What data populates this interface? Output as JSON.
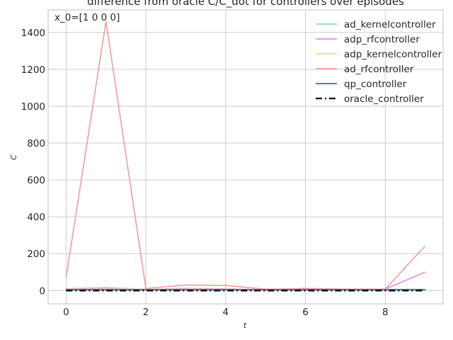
{
  "chart_data": {
    "type": "line",
    "title": "difference from oracle C/C_dot for controllers over episodes",
    "xlabel": "t",
    "ylabel": "C",
    "annotation": "x_0=[1 0 0 0]",
    "xlim": [
      -0.45,
      9.45
    ],
    "ylim": [
      -72,
      1522
    ],
    "xticks": [
      0,
      2,
      4,
      6,
      8
    ],
    "yticks": [
      0,
      200,
      400,
      600,
      800,
      1000,
      1200,
      1400
    ],
    "grid": true,
    "legend_position": "top-right",
    "x": [
      0,
      1,
      2,
      3,
      4,
      5,
      6,
      7,
      8,
      9
    ],
    "series": [
      {
        "name": "ad_kernelcontroller",
        "color": "#8fd3e8",
        "dash": "solid",
        "values": [
          8,
          10,
          9,
          7,
          6,
          6,
          7,
          6,
          7,
          8
        ]
      },
      {
        "name": "adp_rfcontroller",
        "color": "#e090e0",
        "dash": "solid",
        "values": [
          10,
          15,
          7,
          12,
          10,
          5,
          12,
          7,
          8,
          100
        ]
      },
      {
        "name": "adp_kernelcontroller",
        "color": "#dfe09a",
        "dash": "solid",
        "values": [
          7,
          9,
          8,
          8,
          7,
          6,
          7,
          6,
          6,
          7
        ]
      },
      {
        "name": "ad_rfcontroller",
        "color": "#f59a9a",
        "dash": "solid",
        "values": [
          70,
          1460,
          12,
          30,
          28,
          8,
          10,
          8,
          8,
          242
        ]
      },
      {
        "name": "qp_controller",
        "color": "#1f6fb4",
        "dash": "solid",
        "values": [
          5,
          5,
          5,
          5,
          5,
          5,
          5,
          5,
          5,
          5
        ]
      },
      {
        "name": "oracle_controller",
        "color": "#000000",
        "dash": "dashdot",
        "values": [
          0,
          0,
          0,
          0,
          0,
          0,
          0,
          0,
          0,
          0
        ]
      }
    ]
  }
}
